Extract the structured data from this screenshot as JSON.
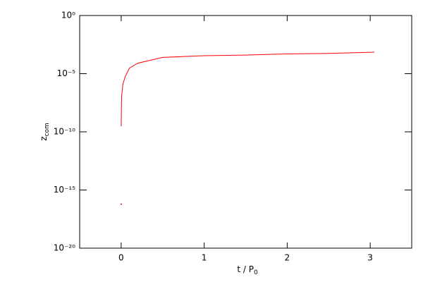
{
  "chart_data": {
    "type": "line",
    "log_y": true,
    "x_label": {
      "text": "t / P",
      "sub": "0"
    },
    "y_label": {
      "text": "z",
      "sub": "com"
    },
    "x": [
      0,
      0,
      0,
      0.005,
      0.02,
      0.05,
      0.1,
      0.2,
      0.5,
      1,
      1.5,
      2,
      2.5,
      3.05
    ],
    "series": [
      {
        "color": "#ff0000",
        "values": [
          6e-17,
          null,
          3e-10,
          1e-07,
          1.2e-06,
          6e-06,
          3e-05,
          8e-05,
          0.00025,
          0.00035,
          0.0004,
          0.0005,
          0.00055,
          0.0007
        ]
      }
    ],
    "xlim": [
      -0.5,
      3.5
    ],
    "xticks": [
      0,
      1,
      2,
      3
    ],
    "ylim": [
      1e-20,
      1
    ],
    "yticks": [
      {
        "value": 1,
        "label": "10⁰"
      },
      {
        "value": 1e-05,
        "label": "10⁻⁵"
      },
      {
        "value": 1e-10,
        "label": "10⁻¹⁰"
      },
      {
        "value": 1e-15,
        "label": "10⁻¹⁵"
      },
      {
        "value": 1e-20,
        "label": "10⁻²⁰"
      }
    ]
  }
}
